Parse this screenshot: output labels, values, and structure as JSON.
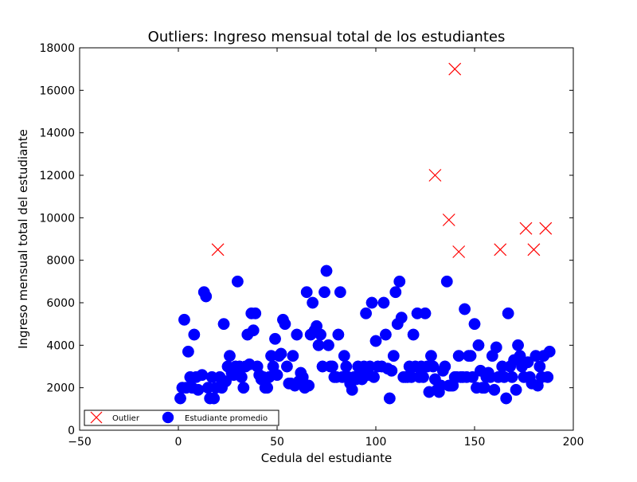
{
  "chart_data": {
    "type": "scatter",
    "title": "Outliers: Ingreso mensual total de los estudiantes",
    "xlabel": "Cedula del estudiante",
    "ylabel": "Ingreso mensual total del estudiante",
    "xlim": [
      -50,
      200
    ],
    "ylim": [
      0,
      18000
    ],
    "x_ticks": [
      -50,
      0,
      50,
      100,
      150,
      200
    ],
    "y_ticks": [
      0,
      2000,
      4000,
      6000,
      8000,
      10000,
      12000,
      14000,
      16000,
      18000
    ],
    "x_tick_labels": [
      "−50",
      "0",
      "50",
      "100",
      "150",
      "200"
    ],
    "y_tick_labels": [
      "0",
      "2000",
      "4000",
      "6000",
      "8000",
      "10000",
      "12000",
      "14000",
      "16000",
      "18000"
    ],
    "grid": false,
    "legend_position": "bottom-left",
    "series": [
      {
        "name": "Outlier",
        "marker": "x",
        "color": "#ff0000",
        "points": [
          [
            20,
            8500
          ],
          [
            130,
            12000
          ],
          [
            137,
            9900
          ],
          [
            140,
            17000
          ],
          [
            142,
            8400
          ],
          [
            163,
            8500
          ],
          [
            176,
            9500
          ],
          [
            180,
            8500
          ],
          [
            186,
            9500
          ]
        ]
      },
      {
        "name": "Estudiante promedio",
        "marker": "circle",
        "color": "#0000ff",
        "points": [
          [
            1,
            1500
          ],
          [
            2,
            2000
          ],
          [
            3,
            5200
          ],
          [
            4,
            2000
          ],
          [
            5,
            3700
          ],
          [
            6,
            2500
          ],
          [
            7,
            2000
          ],
          [
            8,
            4500
          ],
          [
            9,
            2500
          ],
          [
            10,
            1900
          ],
          [
            12,
            2600
          ],
          [
            13,
            6500
          ],
          [
            14,
            6300
          ],
          [
            15,
            2000
          ],
          [
            16,
            1500
          ],
          [
            17,
            2500
          ],
          [
            18,
            1500
          ],
          [
            19,
            2000
          ],
          [
            21,
            2500
          ],
          [
            22,
            2000
          ],
          [
            23,
            5000
          ],
          [
            24,
            2300
          ],
          [
            25,
            3000
          ],
          [
            26,
            3500
          ],
          [
            27,
            2700
          ],
          [
            28,
            2600
          ],
          [
            29,
            3000
          ],
          [
            30,
            7000
          ],
          [
            31,
            3000
          ],
          [
            32,
            2500
          ],
          [
            33,
            2000
          ],
          [
            34,
            3000
          ],
          [
            35,
            4500
          ],
          [
            36,
            3100
          ],
          [
            37,
            5500
          ],
          [
            38,
            4700
          ],
          [
            39,
            5500
          ],
          [
            40,
            3000
          ],
          [
            41,
            2600
          ],
          [
            42,
            2400
          ],
          [
            43,
            2500
          ],
          [
            44,
            2000
          ],
          [
            45,
            2000
          ],
          [
            46,
            2500
          ],
          [
            47,
            3500
          ],
          [
            48,
            3000
          ],
          [
            49,
            4300
          ],
          [
            50,
            2600
          ],
          [
            51,
            3500
          ],
          [
            52,
            3600
          ],
          [
            53,
            5200
          ],
          [
            54,
            5000
          ],
          [
            55,
            3000
          ],
          [
            56,
            2200
          ],
          [
            57,
            2200
          ],
          [
            58,
            3500
          ],
          [
            59,
            2100
          ],
          [
            60,
            4500
          ],
          [
            61,
            2300
          ],
          [
            62,
            2700
          ],
          [
            63,
            2500
          ],
          [
            64,
            2000
          ],
          [
            65,
            6500
          ],
          [
            66,
            2100
          ],
          [
            67,
            4500
          ],
          [
            68,
            6000
          ],
          [
            69,
            4700
          ],
          [
            70,
            4900
          ],
          [
            71,
            4000
          ],
          [
            72,
            4500
          ],
          [
            73,
            3000
          ],
          [
            74,
            6500
          ],
          [
            75,
            7500
          ],
          [
            76,
            4000
          ],
          [
            77,
            3000
          ],
          [
            78,
            3000
          ],
          [
            79,
            2500
          ],
          [
            80,
            2500
          ],
          [
            81,
            4500
          ],
          [
            82,
            6500
          ],
          [
            83,
            2500
          ],
          [
            84,
            3500
          ],
          [
            85,
            3000
          ],
          [
            86,
            2500
          ],
          [
            87,
            2200
          ],
          [
            88,
            1900
          ],
          [
            89,
            2500
          ],
          [
            90,
            2400
          ],
          [
            91,
            3000
          ],
          [
            92,
            2700
          ],
          [
            93,
            2400
          ],
          [
            94,
            3000
          ],
          [
            95,
            5500
          ],
          [
            96,
            2600
          ],
          [
            97,
            3000
          ],
          [
            98,
            6000
          ],
          [
            99,
            2500
          ],
          [
            100,
            4200
          ],
          [
            101,
            3000
          ],
          [
            103,
            3000
          ],
          [
            104,
            6000
          ],
          [
            105,
            4500
          ],
          [
            106,
            2900
          ],
          [
            107,
            1500
          ],
          [
            108,
            2800
          ],
          [
            109,
            3500
          ],
          [
            110,
            6500
          ],
          [
            111,
            5000
          ],
          [
            112,
            7000
          ],
          [
            113,
            5300
          ],
          [
            114,
            2500
          ],
          [
            115,
            2500
          ],
          [
            116,
            2500
          ],
          [
            117,
            3000
          ],
          [
            118,
            2500
          ],
          [
            119,
            4500
          ],
          [
            120,
            3000
          ],
          [
            121,
            5500
          ],
          [
            122,
            2500
          ],
          [
            123,
            3000
          ],
          [
            124,
            2500
          ],
          [
            125,
            5500
          ],
          [
            126,
            3000
          ],
          [
            127,
            1800
          ],
          [
            128,
            3500
          ],
          [
            129,
            3000
          ],
          [
            130,
            2400
          ],
          [
            131,
            1900
          ],
          [
            132,
            1800
          ],
          [
            133,
            2100
          ],
          [
            134,
            2800
          ],
          [
            135,
            3000
          ],
          [
            136,
            7000
          ],
          [
            137,
            2100
          ],
          [
            138,
            2100
          ],
          [
            139,
            2100
          ],
          [
            140,
            2500
          ],
          [
            141,
            2500
          ],
          [
            142,
            3500
          ],
          [
            143,
            2500
          ],
          [
            144,
            2500
          ],
          [
            145,
            5700
          ],
          [
            146,
            2500
          ],
          [
            147,
            3500
          ],
          [
            148,
            3500
          ],
          [
            149,
            2500
          ],
          [
            150,
            5000
          ],
          [
            151,
            2000
          ],
          [
            152,
            4000
          ],
          [
            153,
            2800
          ],
          [
            154,
            2000
          ],
          [
            155,
            2000
          ],
          [
            156,
            2500
          ],
          [
            157,
            2700
          ],
          [
            158,
            2500
          ],
          [
            159,
            3500
          ],
          [
            160,
            1900
          ],
          [
            161,
            3900
          ],
          [
            162,
            2500
          ],
          [
            164,
            3000
          ],
          [
            165,
            2500
          ],
          [
            166,
            1500
          ],
          [
            167,
            5500
          ],
          [
            168,
            3000
          ],
          [
            169,
            2500
          ],
          [
            170,
            3300
          ],
          [
            171,
            1900
          ],
          [
            172,
            4000
          ],
          [
            173,
            3500
          ],
          [
            174,
            3000
          ],
          [
            175,
            2500
          ],
          [
            177,
            3200
          ],
          [
            178,
            2500
          ],
          [
            179,
            2200
          ],
          [
            181,
            3500
          ],
          [
            182,
            2100
          ],
          [
            183,
            3000
          ],
          [
            184,
            2500
          ],
          [
            185,
            3500
          ],
          [
            187,
            2500
          ],
          [
            188,
            3700
          ]
        ]
      }
    ]
  }
}
